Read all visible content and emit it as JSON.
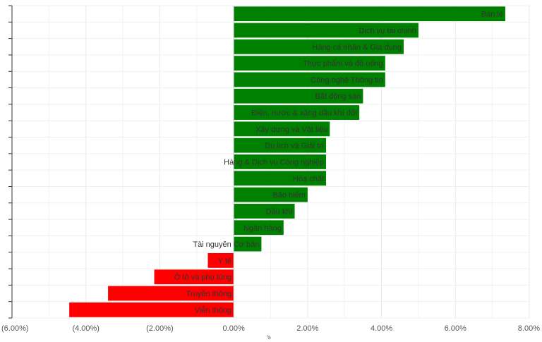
{
  "chart_data": {
    "type": "bar",
    "orientation": "horizontal",
    "categories": [
      "Bán lẻ",
      "Dịch vụ tài chính",
      "Hàng cá nhân & Gia dụng",
      "Thực phẩm và đồ uống",
      "Công nghệ Thông tin",
      "Bất động sản",
      "Điện, nước & xăng dầu khí đốt",
      "Xây dựng và Vật liệu",
      "Du lịch và Giải trí",
      "Hàng & Dịch vụ Công nghiệp",
      "Hóa chất",
      "Bảo hiểm",
      "Dầu khí",
      "Ngân hàng",
      "Tài nguyên Cơ bản",
      "Y tế",
      "Ô tô và phụ tùng",
      "Truyền thông",
      "Viễn thông"
    ],
    "values": [
      7.35,
      5.0,
      4.6,
      4.1,
      4.1,
      3.5,
      3.4,
      2.6,
      2.5,
      2.5,
      2.5,
      2.0,
      1.65,
      1.35,
      0.75,
      -0.7,
      -2.15,
      -3.4,
      -4.45
    ],
    "xlim": [
      -6,
      8
    ],
    "x_ticks": [
      -6,
      -4,
      -2,
      0,
      2,
      4,
      6,
      8
    ],
    "x_tick_labels": [
      "(6.00%)",
      "(4.00%)",
      "(2.00%)",
      "0.00%",
      "2.00%",
      "4.00%",
      "6.00%",
      "8.00%"
    ],
    "xlabel": "ẻ",
    "grid": true,
    "colors": {
      "positive": "#008000",
      "negative": "#ff0000",
      "grid": "#e8e8e8",
      "axis": "#333333"
    }
  }
}
